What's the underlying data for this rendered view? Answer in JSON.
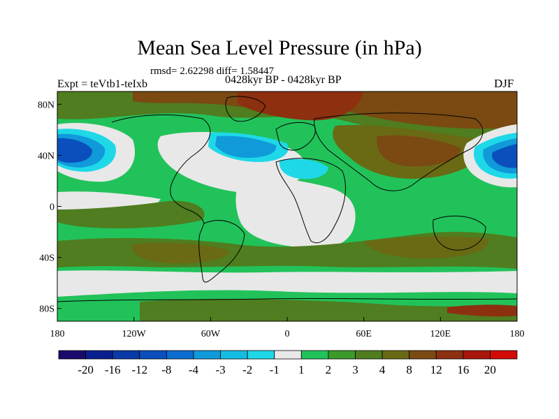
{
  "title": "Mean Sea Level Pressure (in hPa)",
  "stats": "rmsd= 2.62298 diff= 1.58447",
  "experiment": "Expt = teVtb1-teIxb",
  "period": "0428kyr BP - 0428kyr BP",
  "season": "DJF",
  "lat_labels": [
    "80N",
    "40N",
    "0",
    "40S",
    "80S"
  ],
  "lon_labels": [
    "180",
    "120W",
    "60W",
    "0",
    "60E",
    "120E",
    "180"
  ],
  "colorbar": {
    "labels": [
      "-20",
      "-16",
      "-12",
      "-8",
      "-4",
      "-3",
      "-2",
      "-1",
      "1",
      "2",
      "3",
      "4",
      "8",
      "12",
      "16",
      "20"
    ],
    "colors": [
      "#1a0a6b",
      "#0a1f8f",
      "#0a3aa8",
      "#0b4fbd",
      "#0d6ccf",
      "#109ad9",
      "#15bde3",
      "#1ed8e8",
      "#e8e8e8",
      "#22c25a",
      "#3c9a2a",
      "#4f7d1f",
      "#6a6a14",
      "#7a4a12",
      "#8c3010",
      "#a8160c",
      "#d40a06"
    ]
  },
  "colors": {
    "neutral": "#e8e8e8",
    "green_light": "#22c25a",
    "green_mid": "#3c9a2a",
    "olive": "#4f7d1f",
    "olive_dark": "#6a6a14",
    "brown": "#7a4a12",
    "red_brown": "#8c3010",
    "blue_deep": "#0b4fbd",
    "blue_mid": "#109ad9",
    "cyan": "#1ed8e8"
  }
}
